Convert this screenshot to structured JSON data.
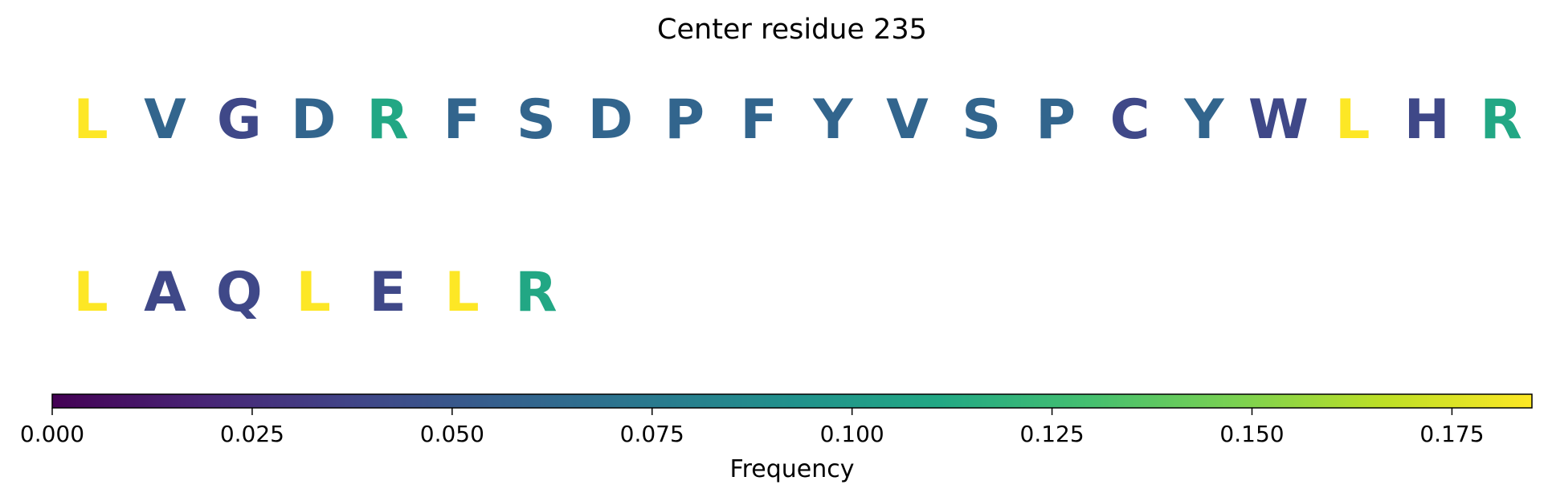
{
  "chart_data": {
    "type": "sequence_logo",
    "title": "Center residue 235",
    "colormap": "viridis",
    "rows": [
      {
        "residues": [
          "L",
          "V",
          "G",
          "D",
          "R",
          "F",
          "S",
          "D",
          "P",
          "F",
          "Y",
          "V",
          "S",
          "P",
          "C",
          "Y",
          "W",
          "L",
          "H",
          "R"
        ],
        "frequencies": [
          0.185,
          0.06,
          0.04,
          0.06,
          0.11,
          0.06,
          0.06,
          0.06,
          0.06,
          0.06,
          0.06,
          0.06,
          0.06,
          0.06,
          0.04,
          0.06,
          0.04,
          0.185,
          0.04,
          0.11
        ]
      },
      {
        "residues": [
          "L",
          "A",
          "Q",
          "L",
          "E",
          "L",
          "R"
        ],
        "frequencies": [
          0.185,
          0.04,
          0.04,
          0.185,
          0.04,
          0.185,
          0.11
        ]
      }
    ],
    "colorbar": {
      "label": "Frequency",
      "range": [
        0,
        0.185
      ],
      "ticks": [
        0.0,
        0.025,
        0.05,
        0.075,
        0.1,
        0.125,
        0.15,
        0.175
      ],
      "tick_labels": [
        "0.000",
        "0.025",
        "0.050",
        "0.075",
        "0.100",
        "0.125",
        "0.150",
        "0.175"
      ]
    }
  }
}
